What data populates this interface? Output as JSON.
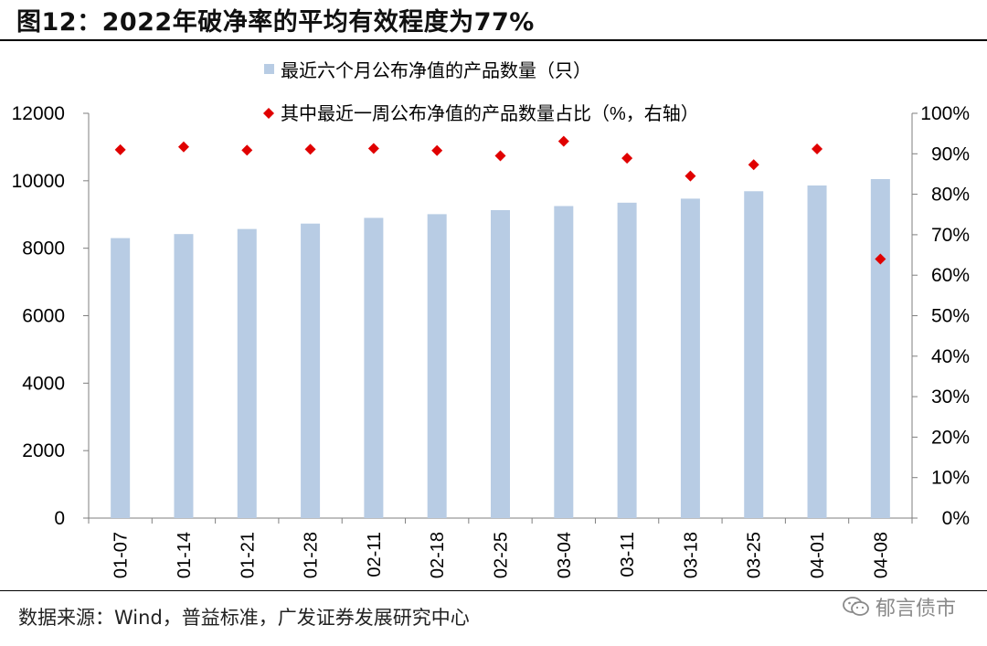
{
  "figure_title": "图12：2022年破净率的平均有效程度为77%",
  "source_note": "数据来源：Wind，普益标准，广发证券发展研究中心",
  "watermark": "郁言债市",
  "colors": {
    "bar": "#b8cce4",
    "marker": "#e00000",
    "axis": "#7f7f7f"
  },
  "icons": {
    "watermark": "wechat-icon"
  },
  "chart_data": {
    "type": "bar",
    "categories": [
      "01-07",
      "01-14",
      "01-21",
      "01-28",
      "02-11",
      "02-18",
      "02-25",
      "03-04",
      "03-11",
      "03-18",
      "03-25",
      "04-01",
      "04-08"
    ],
    "series": [
      {
        "name": "最近六个月公布净值的产品数量（只）",
        "type": "bar",
        "axis": "left",
        "values": [
          8300,
          8420,
          8570,
          8730,
          8900,
          9010,
          9130,
          9250,
          9350,
          9470,
          9690,
          9860,
          10050
        ]
      },
      {
        "name": "其中最近一周公布净值的产品数量占比（%，右轴）",
        "type": "scatter",
        "axis": "right",
        "values": [
          91,
          91.7,
          90.9,
          91.1,
          91.3,
          90.8,
          89.5,
          93.1,
          88.9,
          84.5,
          87.3,
          91.2,
          64
        ]
      }
    ],
    "y_left": {
      "ylim": [
        0,
        12000
      ],
      "ticks": [
        "0",
        "2000",
        "4000",
        "6000",
        "8000",
        "10000",
        "12000"
      ]
    },
    "y_right": {
      "ylim": [
        0,
        100
      ],
      "ticks": [
        "0%",
        "10%",
        "20%",
        "30%",
        "40%",
        "50%",
        "60%",
        "70%",
        "80%",
        "90%",
        "100%"
      ]
    },
    "legend_position": "top-center",
    "grid": false
  }
}
